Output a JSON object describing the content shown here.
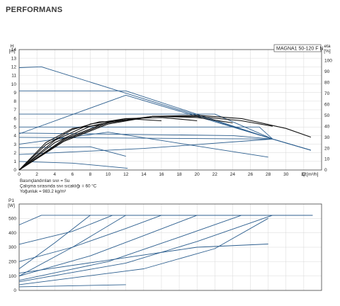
{
  "page": {
    "title": "PERFORMANS"
  },
  "chart_data": [
    {
      "type": "line",
      "name": "head-efficiency-chart",
      "model": "MAGNA1 50-120 F N",
      "xlabel": "Q [m³/h]",
      "ylabel_lines": [
        "H",
        "[m]"
      ],
      "ylabel2_lines": [
        "eta",
        "[%]"
      ],
      "xlim": [
        0,
        34
      ],
      "ylim": [
        0,
        14
      ],
      "y2lim": [
        0,
        110
      ],
      "xticks": [
        0,
        2,
        4,
        6,
        8,
        10,
        12,
        14,
        16,
        18,
        20,
        22,
        24,
        26,
        28,
        30,
        32
      ],
      "yticks": [
        0,
        1,
        2,
        3,
        4,
        5,
        6,
        7,
        8,
        9,
        10,
        11,
        12,
        13,
        14
      ],
      "y2ticks": [
        0,
        10,
        20,
        30,
        40,
        50,
        60,
        70,
        80,
        90,
        100
      ],
      "grid": true,
      "notes": [
        "Basınçlandırılan sıvı = Su",
        "Çalışma sırasında sıvı sıcaklığı = 60 °C",
        "Yoğunluk = 983.2 kg/m³"
      ],
      "series": [
        {
          "color": "#2d5f8f",
          "x": [
            0,
            2.5,
            28.5,
            32.8
          ],
          "y": [
            11.9,
            12,
            3.6,
            2.3
          ]
        },
        {
          "color": "#2d5f8f",
          "x": [
            0,
            12,
            28.5,
            32.8
          ],
          "y": [
            9.2,
            9.2,
            3.6,
            2.3
          ]
        },
        {
          "color": "#2d5f8f",
          "x": [
            0,
            22,
            28.5,
            32.8
          ],
          "y": [
            6.5,
            6.5,
            3.6,
            2.3
          ]
        },
        {
          "color": "#2d5f8f",
          "x": [
            0,
            27,
            28.5,
            32.8
          ],
          "y": [
            5.0,
            5.0,
            3.6,
            2.3
          ]
        },
        {
          "color": "#2d5f8f",
          "x": [
            0,
            28.5
          ],
          "y": [
            3.8,
            3.6
          ]
        },
        {
          "color": "#2d5f8f",
          "x": [
            0,
            12,
            28.5
          ],
          "y": [
            4.2,
            8.7,
            3.6
          ]
        },
        {
          "color": "#2d5f8f",
          "x": [
            0,
            10,
            28
          ],
          "y": [
            3.0,
            4.4,
            1.5
          ]
        },
        {
          "color": "#2d5f8f",
          "x": [
            0,
            14,
            28.5
          ],
          "y": [
            1.8,
            2.5,
            3.6
          ]
        },
        {
          "color": "#2d5f8f",
          "x": [
            0,
            6,
            12.2
          ],
          "y": [
            1.0,
            0.8,
            0.2
          ]
        },
        {
          "color": "#2d5f8f",
          "x": [
            0,
            8,
            12
          ],
          "y": [
            2.6,
            2.7,
            1.6
          ]
        },
        {
          "color": "#2d5f8f",
          "x": [
            0,
            24,
            28.5
          ],
          "y": [
            4.3,
            4.0,
            3.6
          ]
        },
        {
          "color": "#111111",
          "x": [
            0,
            5,
            10,
            15,
            20,
            25,
            30,
            32.8
          ],
          "y": [
            0,
            26,
            42,
            49,
            50,
            47,
            38,
            30
          ]
        },
        {
          "color": "#111111",
          "x": [
            0,
            5,
            10,
            15,
            20,
            25,
            28.5
          ],
          "y": [
            0,
            27,
            43,
            49,
            49,
            45,
            40
          ]
        },
        {
          "color": "#111111",
          "x": [
            0,
            5,
            10,
            15,
            20,
            24
          ],
          "y": [
            0,
            28,
            44,
            49,
            48,
            43
          ]
        },
        {
          "color": "#111111",
          "x": [
            0,
            4,
            8,
            12,
            16,
            20
          ],
          "y": [
            0,
            25,
            40,
            47,
            48,
            45
          ]
        },
        {
          "color": "#111111",
          "x": [
            0,
            4,
            8,
            12,
            16
          ],
          "y": [
            0,
            27,
            42,
            47,
            45
          ]
        },
        {
          "color": "#111111",
          "x": [
            0,
            3,
            6,
            9,
            12
          ],
          "y": [
            0,
            23,
            37,
            44,
            45
          ]
        },
        {
          "color": "#111111",
          "x": [
            0,
            3,
            6,
            9
          ],
          "y": [
            0,
            25,
            38,
            41
          ]
        }
      ]
    },
    {
      "type": "line",
      "name": "power-chart",
      "ylabel_lines": [
        "P1",
        "[W]"
      ],
      "xlim": [
        0,
        34
      ],
      "ylim": [
        0,
        600
      ],
      "yticks": [
        0,
        100,
        200,
        300,
        400,
        500
      ],
      "grid": true,
      "series": [
        {
          "color": "#2d5f8f",
          "x": [
            0,
            2.5,
            33
          ],
          "y": [
            455,
            522,
            522
          ]
        },
        {
          "color": "#2d5f8f",
          "x": [
            0,
            6,
            10.5,
            33
          ],
          "y": [
            320,
            410,
            522,
            522
          ]
        },
        {
          "color": "#2d5f8f",
          "x": [
            0,
            6,
            12,
            16,
            33
          ],
          "y": [
            200,
            300,
            430,
            522,
            522
          ]
        },
        {
          "color": "#2d5f8f",
          "x": [
            0,
            8,
            14,
            20,
            33
          ],
          "y": [
            100,
            240,
            380,
            522,
            522
          ]
        },
        {
          "color": "#2d5f8f",
          "x": [
            0,
            10,
            18,
            25,
            33
          ],
          "y": [
            70,
            200,
            370,
            522,
            522
          ]
        },
        {
          "color": "#2d5f8f",
          "x": [
            0,
            12,
            20,
            28.5
          ],
          "y": [
            60,
            190,
            340,
            522
          ]
        },
        {
          "color": "#2d5f8f",
          "x": [
            0,
            14,
            22,
            28
          ],
          "y": [
            40,
            150,
            290,
            500
          ]
        },
        {
          "color": "#2d5f8f",
          "x": [
            0,
            6,
            12
          ],
          "y": [
            100,
            300,
            522
          ]
        },
        {
          "color": "#2d5f8f",
          "x": [
            0,
            10,
            20,
            28
          ],
          "y": [
            120,
            210,
            300,
            322
          ]
        },
        {
          "color": "#2d5f8f",
          "x": [
            0,
            12
          ],
          "y": [
            25,
            40
          ]
        },
        {
          "color": "#2d5f8f",
          "x": [
            0,
            4,
            8
          ],
          "y": [
            150,
            330,
            522
          ]
        }
      ]
    }
  ]
}
